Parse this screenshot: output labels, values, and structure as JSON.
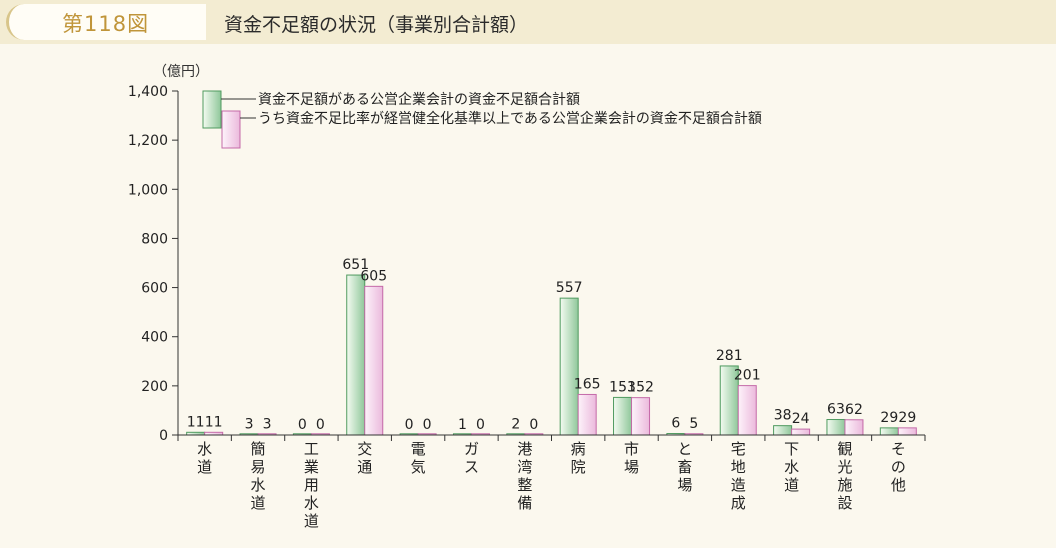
{
  "header": {
    "figure_number": "第118図",
    "title": "資金不足額の状況（事業別合計額）"
  },
  "colors": {
    "series1_light": "#f4fbf1",
    "series1_dark": "#8fc79a",
    "series1_stroke": "#4f9a5f",
    "series2_light": "#fdf3fa",
    "series2_dark": "#ebb9dc",
    "series2_stroke": "#c46aa8"
  },
  "chart_data": {
    "type": "bar",
    "y_unit": "（億円）",
    "ylim": [
      0,
      1400
    ],
    "y_ticks": [
      "0",
      "200",
      "400",
      "600",
      "800",
      "1,000",
      "1,200",
      "1,400"
    ],
    "categories": [
      "水道",
      "簡易水道",
      "工業用水道",
      "交通",
      "電気",
      "ガス",
      "港湾整備",
      "病院",
      "市場",
      "と畜場",
      "宅地造成",
      "下水道",
      "観光施設",
      "その他"
    ],
    "series": [
      {
        "name": "資金不足額がある公営企業会計の資金不足額合計額",
        "values": [
          11,
          3,
          0,
          651,
          0,
          1,
          2,
          557,
          153,
          6,
          281,
          38,
          63,
          29
        ]
      },
      {
        "name": "うち資金不足比率が経営健全化基準以上である公営企業会計の資金不足額合計額",
        "values": [
          11,
          3,
          0,
          605,
          0,
          0,
          0,
          165,
          152,
          5,
          201,
          24,
          62,
          29
        ]
      }
    ]
  }
}
